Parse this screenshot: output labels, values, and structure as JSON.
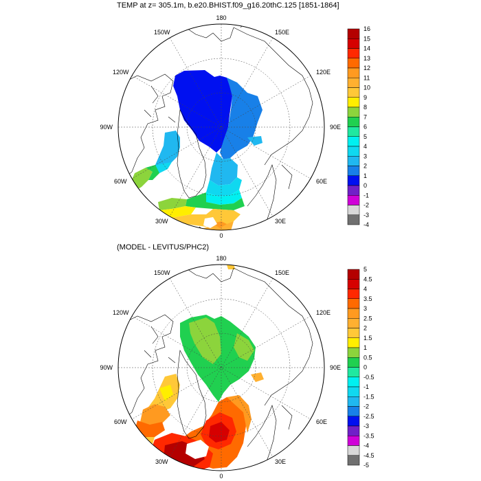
{
  "panel1": {
    "title": "TEMP at z= 305.1m, b.e20.BHIST.f09_g16.20thC.125 [1851-1864]",
    "lon_labels": {
      "top": "180",
      "bottom": "0",
      "left": "90W",
      "right": "90E",
      "ul_a": "150W",
      "ul_b": "120W",
      "ur_a": "150E",
      "ur_b": "120E",
      "ll_a": "60W",
      "ll_b": "30W",
      "lr_a": "60E",
      "lr_b": "30E"
    },
    "colorbar": {
      "labels": [
        "16",
        "15",
        "14",
        "13",
        "12",
        "11",
        "10",
        "9",
        "8",
        "7",
        "6",
        "5",
        "4",
        "3",
        "2",
        "1",
        "0",
        "-1",
        "-2",
        "-3",
        "-4"
      ],
      "colors": [
        "#b40000",
        "#d60000",
        "#ff2800",
        "#ff6a00",
        "#ff9a20",
        "#ffb030",
        "#ffc838",
        "#ffee00",
        "#8cd43c",
        "#20d050",
        "#20e8a0",
        "#00f0f0",
        "#10d8f0",
        "#20b8f0",
        "#1880e8",
        "#0010f0",
        "#7020c8",
        "#d000d8",
        "#d8d8d8",
        "#707070"
      ]
    }
  },
  "panel2": {
    "title": "(MODEL - LEVITUS/PHC2)",
    "lon_labels": {
      "top": "180",
      "bottom": "0",
      "left": "90W",
      "right": "90E",
      "ul_a": "150W",
      "ul_b": "120W",
      "ur_a": "150E",
      "ur_b": "120E",
      "ll_a": "60W",
      "ll_b": "30W",
      "lr_a": "60E",
      "lr_b": "30E"
    },
    "colorbar": {
      "labels": [
        "5",
        "4.5",
        "4",
        "3.5",
        "3",
        "2.5",
        "2",
        "1.5",
        "1",
        "0.5",
        "0",
        "-0.5",
        "-1",
        "-1.5",
        "-2",
        "-2.5",
        "-3",
        "-3.5",
        "-4",
        "-4.5",
        "-5"
      ],
      "colors": [
        "#b40000",
        "#d60000",
        "#ff2800",
        "#ff6a00",
        "#ff9a20",
        "#ffb030",
        "#ffc838",
        "#ffee00",
        "#8cd43c",
        "#20d050",
        "#20e8a0",
        "#00f0f0",
        "#10d8f0",
        "#20b8f0",
        "#1880e8",
        "#0010f0",
        "#7020c8",
        "#d000d8",
        "#d8d8d8",
        "#707070"
      ]
    }
  }
}
